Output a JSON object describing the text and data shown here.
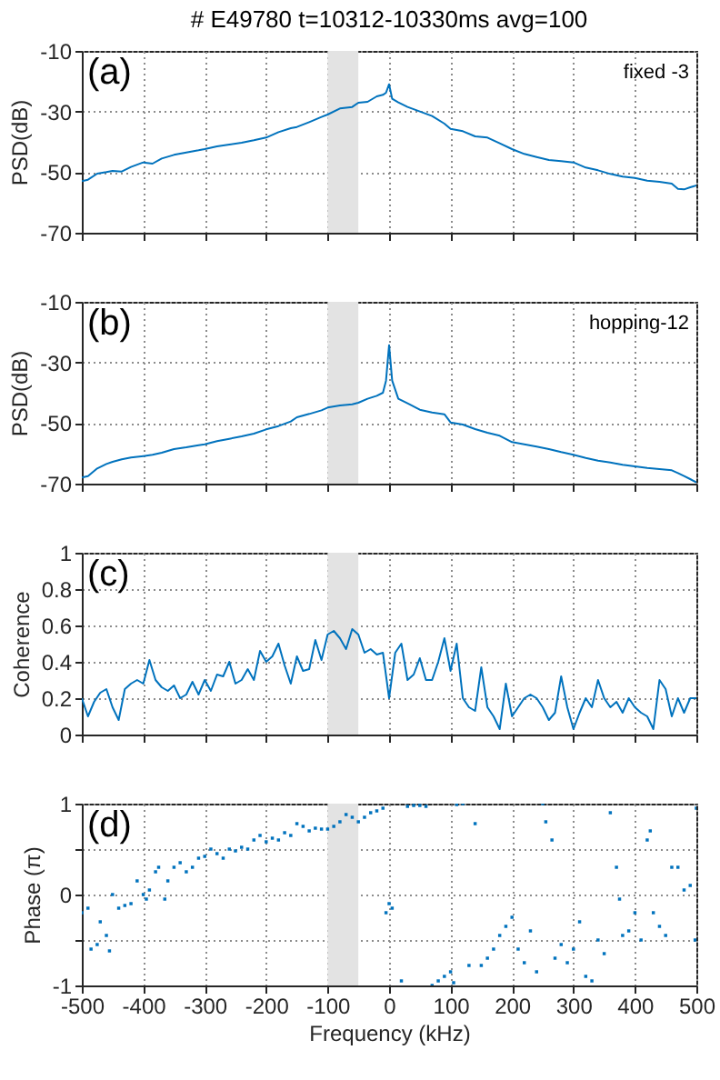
{
  "chart_data": [
    {
      "type": "line",
      "title": "# E49780   t=10312-10330ms  avg=100",
      "ylabel": "PSD(dB)",
      "annotations": [
        "(a)",
        "fixed -3"
      ],
      "x": [
        -500,
        -490,
        -475,
        -460,
        -450,
        -435,
        -420,
        -400,
        -385,
        -370,
        -350,
        -330,
        -310,
        -300,
        -280,
        -260,
        -240,
        -220,
        -200,
        -180,
        -160,
        -150,
        -130,
        -110,
        -100,
        -80,
        -60,
        -50,
        -35,
        -20,
        -10,
        -5,
        0,
        5,
        15,
        30,
        50,
        70,
        90,
        100,
        120,
        140,
        160,
        180,
        200,
        220,
        240,
        260,
        280,
        300,
        320,
        340,
        360,
        380,
        400,
        420,
        440,
        460,
        470,
        480,
        490,
        500
      ],
      "series": [
        {
          "color": "#0072bd",
          "values": [
            -53,
            -52.5,
            -50.5,
            -50,
            -49.6,
            -49.8,
            -48.3,
            -46.8,
            -47.2,
            -45.5,
            -44.3,
            -43.5,
            -42.8,
            -42.4,
            -41.5,
            -40.9,
            -40.3,
            -39.5,
            -38.6,
            -36.8,
            -35.5,
            -35.1,
            -33.5,
            -31.8,
            -31,
            -29,
            -28.5,
            -27.1,
            -26.8,
            -25,
            -24.5,
            -23.8,
            -21,
            -25.8,
            -27,
            -28.5,
            -30,
            -31.5,
            -34,
            -35.7,
            -36.5,
            -38.2,
            -38.6,
            -40.5,
            -42.4,
            -44,
            -45,
            -46,
            -46.4,
            -46.8,
            -48.5,
            -49.4,
            -50.6,
            -51.5,
            -51.9,
            -52.8,
            -53.2,
            -53.8,
            -55.5,
            -55.7,
            -55,
            -54.4
          ]
        }
      ],
      "xlim": [
        -500,
        500
      ],
      "xticks": [
        -500,
        -400,
        -300,
        -200,
        -100,
        0,
        100,
        200,
        300,
        400,
        500
      ],
      "ylim": [
        -70,
        -10
      ],
      "yticks": [
        -70,
        -50,
        -30,
        -10
      ],
      "bands": [
        {
          "axis": "x",
          "from": -100,
          "to": -50,
          "color": "#e3e3e3"
        }
      ],
      "grid": true,
      "tick_labels": "y"
    },
    {
      "type": "line",
      "ylabel": "PSD(dB)",
      "annotations": [
        "(b)",
        "hopping-12"
      ],
      "x": [
        -500,
        -490,
        -475,
        -460,
        -450,
        -435,
        -420,
        -400,
        -385,
        -370,
        -350,
        -330,
        -310,
        -300,
        -280,
        -260,
        -240,
        -220,
        -200,
        -180,
        -160,
        -150,
        -130,
        -110,
        -100,
        -80,
        -60,
        -50,
        -35,
        -20,
        -10,
        -5,
        0,
        5,
        15,
        30,
        50,
        70,
        90,
        100,
        120,
        140,
        160,
        180,
        200,
        220,
        240,
        260,
        280,
        300,
        320,
        340,
        360,
        380,
        400,
        420,
        440,
        460,
        470,
        480,
        490,
        500
      ],
      "series": [
        {
          "color": "#0072bd",
          "values": [
            -68,
            -67.5,
            -65,
            -63.5,
            -62.8,
            -62,
            -61.4,
            -60.9,
            -60.5,
            -59.8,
            -58.6,
            -58,
            -57.3,
            -57,
            -56,
            -55.2,
            -54.4,
            -53.5,
            -52.1,
            -51,
            -49.5,
            -48.1,
            -47,
            -45.8,
            -44.9,
            -44.2,
            -43.8,
            -43.3,
            -42,
            -41,
            -40,
            -36,
            -24.3,
            -36,
            -42,
            -43.5,
            -45.6,
            -46.5,
            -47.1,
            -49.8,
            -50.5,
            -52,
            -53.2,
            -54.2,
            -56.3,
            -57,
            -57.8,
            -58.6,
            -59.6,
            -60.5,
            -61.5,
            -62.4,
            -63,
            -63.8,
            -64.3,
            -64.8,
            -65.2,
            -65.6,
            -66.5,
            -67.5,
            -68.5,
            -69.6
          ]
        }
      ],
      "xlim": [
        -500,
        500
      ],
      "xticks": [
        -500,
        -400,
        -300,
        -200,
        -100,
        0,
        100,
        200,
        300,
        400,
        500
      ],
      "ylim": [
        -70,
        -10
      ],
      "yticks": [
        -70,
        -50,
        -30,
        -10
      ],
      "bands": [
        {
          "axis": "x",
          "from": -100,
          "to": -50,
          "color": "#e3e3e3"
        }
      ],
      "grid": true,
      "tick_labels": "y"
    },
    {
      "type": "line",
      "ylabel": "Coherence",
      "annotations": [
        "(c)"
      ],
      "x": [
        -500,
        -490,
        -480,
        -470,
        -460,
        -450,
        -440,
        -430,
        -420,
        -410,
        -400,
        -390,
        -380,
        -370,
        -360,
        -350,
        -340,
        -330,
        -320,
        -310,
        -300,
        -290,
        -280,
        -270,
        -260,
        -250,
        -240,
        -230,
        -220,
        -210,
        -200,
        -190,
        -180,
        -170,
        -160,
        -150,
        -140,
        -130,
        -120,
        -110,
        -100,
        -90,
        -80,
        -70,
        -60,
        -50,
        -40,
        -30,
        -20,
        -10,
        0,
        10,
        20,
        30,
        40,
        50,
        60,
        70,
        80,
        90,
        100,
        110,
        120,
        130,
        140,
        150,
        160,
        170,
        180,
        190,
        200,
        210,
        220,
        230,
        240,
        250,
        260,
        270,
        280,
        290,
        300,
        310,
        320,
        330,
        340,
        350,
        360,
        370,
        380,
        390,
        400,
        410,
        420,
        430,
        440,
        450,
        460,
        470,
        480,
        490,
        500
      ],
      "series": [
        {
          "color": "#0072bd",
          "values": [
            0.2,
            0.1,
            0.18,
            0.23,
            0.25,
            0.15,
            0.08,
            0.25,
            0.28,
            0.3,
            0.28,
            0.41,
            0.3,
            0.26,
            0.24,
            0.27,
            0.2,
            0.22,
            0.29,
            0.22,
            0.3,
            0.24,
            0.33,
            0.32,
            0.4,
            0.28,
            0.3,
            0.36,
            0.3,
            0.46,
            0.4,
            0.43,
            0.5,
            0.38,
            0.28,
            0.43,
            0.35,
            0.36,
            0.52,
            0.41,
            0.55,
            0.57,
            0.53,
            0.47,
            0.58,
            0.55,
            0.45,
            0.47,
            0.44,
            0.45,
            0.2,
            0.45,
            0.5,
            0.3,
            0.33,
            0.42,
            0.3,
            0.3,
            0.4,
            0.53,
            0.35,
            0.5,
            0.2,
            0.15,
            0.13,
            0.37,
            0.15,
            0.1,
            0.03,
            0.28,
            0.1,
            0.15,
            0.2,
            0.22,
            0.2,
            0.15,
            0.08,
            0.12,
            0.32,
            0.15,
            0.03,
            0.12,
            0.2,
            0.15,
            0.3,
            0.2,
            0.15,
            0.18,
            0.12,
            0.2,
            0.15,
            0.12,
            0.1,
            0.03,
            0.3,
            0.25,
            0.1,
            0.2,
            0.12,
            0.2,
            0.2
          ]
        }
      ],
      "xlim": [
        -500,
        500
      ],
      "xticks": [
        -500,
        -400,
        -300,
        -200,
        -100,
        0,
        100,
        200,
        300,
        400,
        500
      ],
      "ylim": [
        0,
        1
      ],
      "yticks": [
        0,
        0.2,
        0.4,
        0.6,
        0.8,
        1
      ],
      "bands": [
        {
          "axis": "x",
          "from": -100,
          "to": -50,
          "color": "#e3e3e3"
        }
      ],
      "grid": true,
      "tick_labels": "y"
    },
    {
      "type": "scatter",
      "xlabel": "Frequency (kHz)",
      "ylabel": "Phase (π)",
      "annotations": [
        "(d)"
      ],
      "x": [
        -500,
        -490,
        -485,
        -475,
        -470,
        -460,
        -455,
        -450,
        -440,
        -430,
        -420,
        -410,
        -400,
        -395,
        -390,
        -380,
        -375,
        -365,
        -360,
        -350,
        -340,
        -330,
        -320,
        -310,
        -300,
        -290,
        -280,
        -270,
        -260,
        -250,
        -240,
        -230,
        -220,
        -210,
        -200,
        -190,
        -180,
        -170,
        -160,
        -150,
        -140,
        -130,
        -120,
        -110,
        -100,
        -90,
        -80,
        -70,
        -60,
        -50,
        -40,
        -30,
        -20,
        -10,
        -5,
        0,
        5,
        20,
        30,
        40,
        50,
        60,
        70,
        80,
        90,
        100,
        105,
        110,
        120,
        130,
        140,
        150,
        160,
        170,
        180,
        190,
        200,
        210,
        220,
        230,
        240,
        250,
        255,
        265,
        270,
        280,
        290,
        300,
        310,
        320,
        330,
        340,
        350,
        360,
        370,
        375,
        380,
        390,
        400,
        410,
        420,
        425,
        430,
        440,
        450,
        460,
        470,
        480,
        490,
        498,
        500
      ],
      "series": [
        {
          "color": "#0072bd",
          "values": [
            -0.2,
            -0.15,
            -0.6,
            -0.55,
            -0.3,
            -0.45,
            -0.62,
            0,
            -0.15,
            -0.12,
            -0.1,
            0.15,
            0,
            -0.05,
            0.05,
            0.25,
            0.3,
            -0.05,
            0.15,
            0.3,
            0.35,
            0.25,
            0.3,
            0.4,
            0.42,
            0.5,
            0.45,
            0.4,
            0.5,
            0.48,
            0.52,
            0.5,
            0.6,
            0.65,
            0.58,
            0.62,
            0.6,
            0.68,
            0.65,
            0.78,
            0.75,
            0.7,
            0.73,
            0.72,
            0.72,
            0.75,
            0.8,
            0.88,
            0.85,
            0.8,
            0.85,
            0.9,
            0.92,
            0.95,
            -0.2,
            -0.1,
            -0.15,
            -0.95,
            0.97,
            0.98,
            0.98,
            0.97,
            -1,
            -0.95,
            -0.9,
            -0.85,
            -0.97,
            0.99,
            1,
            -0.78,
            0.78,
            -0.78,
            -0.7,
            -0.6,
            -0.45,
            -0.35,
            -0.25,
            -0.6,
            -0.75,
            -0.4,
            -0.85,
            1,
            0.8,
            0.6,
            -0.7,
            -0.55,
            -0.75,
            -0.6,
            -0.3,
            -0.9,
            -0.95,
            -0.5,
            -0.65,
            0.9,
            0.3,
            -0.05,
            -0.45,
            -0.4,
            -0.2,
            -0.5,
            0.6,
            0.7,
            -0.2,
            -0.35,
            -0.45,
            0.3,
            0.3,
            0.05,
            0.1,
            -0.5,
            0.95
          ]
        }
      ],
      "xlim": [
        -500,
        500
      ],
      "xticks": [
        -500,
        -400,
        -300,
        -200,
        -100,
        0,
        100,
        200,
        300,
        400,
        500
      ],
      "ylim": [
        -1,
        1
      ],
      "yticks": [
        -1,
        {
          "value": -0.5,
          "label": null
        },
        0,
        {
          "value": 0.5,
          "label": null
        },
        1
      ],
      "bands": [
        {
          "axis": "x",
          "from": -100,
          "to": -50,
          "color": "#e3e3e3"
        }
      ],
      "grid": true
    }
  ]
}
